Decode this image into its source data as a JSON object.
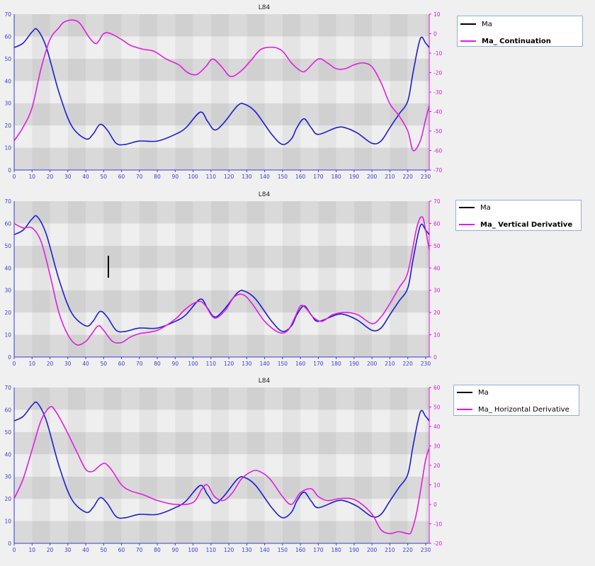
{
  "colors": {
    "series1": "#1c1cd4",
    "series2": "#e01ee0",
    "axis_left": "#3a3ad8",
    "axis_right": "#d818d8",
    "band_dark": "#d9d9d9",
    "band_light": "#efefef",
    "band_dark_shade": "#d0d0d0",
    "band_light_shade": "#e4e4e4"
  },
  "chart_data": [
    {
      "type": "line",
      "title": "L84",
      "xlim": [
        0,
        232
      ],
      "xticks": [
        0,
        10,
        20,
        30,
        40,
        50,
        60,
        70,
        80,
        90,
        100,
        110,
        120,
        130,
        140,
        150,
        160,
        170,
        180,
        190,
        200,
        210,
        220,
        230
      ],
      "ylim_left": [
        0,
        70
      ],
      "yticks_left": [
        0,
        10,
        20,
        30,
        40,
        50,
        60,
        70
      ],
      "ylim_right": [
        -70,
        10
      ],
      "yticks_right": [
        -70,
        -60,
        -50,
        -40,
        -30,
        -20,
        -10,
        0,
        10
      ],
      "legend": {
        "position": "right"
      },
      "series": [
        {
          "name": "Ma",
          "axis": "left",
          "x": [
            0,
            5,
            10,
            13,
            18,
            25,
            32,
            40,
            44,
            48,
            52,
            57,
            62,
            70,
            80,
            90,
            96,
            104,
            108,
            112,
            117,
            125,
            129,
            135,
            144,
            150,
            155,
            158,
            162,
            166,
            170,
            180,
            185,
            192,
            200,
            205,
            210,
            215,
            220,
            223,
            227,
            230,
            232
          ],
          "y": [
            55,
            57,
            62,
            63,
            55,
            35,
            20,
            14,
            16,
            20.5,
            18,
            12,
            11.5,
            13,
            13,
            16,
            19,
            26,
            22,
            18,
            21,
            29,
            29.5,
            26,
            16,
            11.5,
            14,
            19,
            23,
            19,
            16,
            19,
            19,
            16.5,
            12,
            13,
            19,
            25,
            31,
            44,
            59,
            57,
            55
          ]
        },
        {
          "name": "Ma_ Continuation",
          "axis": "right",
          "x": [
            0,
            5,
            10,
            15,
            20,
            25,
            28,
            33,
            37,
            42,
            46,
            50,
            54,
            60,
            65,
            72,
            78,
            85,
            92,
            97,
            102,
            107,
            111,
            116,
            121,
            127,
            133,
            138,
            145,
            150,
            155,
            160,
            163,
            170,
            175,
            180,
            185,
            190,
            195,
            200,
            205,
            210,
            215,
            220,
            223,
            227,
            230,
            232
          ],
          "y": [
            -55,
            -48,
            -38,
            -18,
            -3,
            3,
            6,
            7,
            5,
            -2,
            -5,
            0,
            0,
            -3,
            -6,
            -8,
            -9,
            -13,
            -16,
            -20,
            -21,
            -17,
            -13,
            -17,
            -22,
            -19,
            -13,
            -8,
            -7,
            -9,
            -15,
            -19,
            -19,
            -13,
            -15,
            -18,
            -18,
            -16,
            -15,
            -17,
            -25,
            -36,
            -42,
            -50,
            -60,
            -55,
            -44,
            -37
          ]
        }
      ]
    },
    {
      "type": "line",
      "title": "L84",
      "xlim": [
        0,
        232
      ],
      "xticks": [
        0,
        10,
        20,
        30,
        40,
        50,
        60,
        70,
        80,
        90,
        100,
        110,
        120,
        130,
        140,
        150,
        160,
        170,
        180,
        190,
        200,
        210,
        220,
        230
      ],
      "ylim_left": [
        0,
        70
      ],
      "yticks_left": [
        0,
        10,
        20,
        30,
        40,
        50,
        60,
        70
      ],
      "ylim_right": [
        0,
        70
      ],
      "yticks_right": [
        0,
        10,
        20,
        30,
        40,
        50,
        60,
        70
      ],
      "legend": {
        "position": "right"
      },
      "series": [
        {
          "name": "Ma",
          "axis": "left",
          "x": [
            0,
            5,
            10,
            13,
            18,
            25,
            32,
            40,
            44,
            48,
            52,
            57,
            62,
            70,
            80,
            90,
            96,
            104,
            108,
            112,
            117,
            125,
            129,
            135,
            144,
            150,
            155,
            158,
            162,
            166,
            170,
            180,
            185,
            192,
            200,
            205,
            210,
            215,
            220,
            223,
            227,
            230,
            232
          ],
          "y": [
            55,
            57,
            62,
            63,
            55,
            35,
            20,
            14,
            16,
            20.5,
            18,
            12,
            11.5,
            13,
            13,
            16,
            19,
            26,
            22,
            18,
            21,
            29,
            29.5,
            26,
            16,
            11.5,
            14,
            19,
            23,
            19,
            16,
            19,
            19,
            16.5,
            12,
            13,
            19,
            25,
            31,
            44,
            59,
            57,
            55
          ]
        },
        {
          "name": "Ma_ Vertical Derivative",
          "axis": "right",
          "x": [
            0,
            5,
            10,
            15,
            20,
            25,
            30,
            35,
            40,
            43,
            47,
            50,
            55,
            60,
            65,
            70,
            80,
            90,
            95,
            100,
            104,
            107,
            112,
            118,
            123,
            128,
            133,
            140,
            148,
            153,
            157,
            160,
            163,
            167,
            172,
            178,
            185,
            192,
            200,
            205,
            210,
            215,
            220,
            225,
            228,
            230,
            232
          ],
          "y": [
            60,
            58,
            58,
            52,
            37,
            20,
            10,
            5.5,
            7,
            10,
            14,
            12,
            7,
            6.5,
            9,
            10.5,
            12,
            17,
            21,
            24,
            25,
            23,
            17.5,
            21,
            27,
            28,
            24,
            16,
            11,
            12,
            18,
            23,
            22,
            18,
            16,
            19,
            20,
            19,
            15,
            18,
            24,
            31,
            38,
            58,
            63,
            57,
            48
          ]
        }
      ]
    },
    {
      "type": "line",
      "title": "L84",
      "xlim": [
        0,
        232
      ],
      "xticks": [
        0,
        10,
        20,
        30,
        40,
        50,
        60,
        70,
        80,
        90,
        100,
        110,
        120,
        130,
        140,
        150,
        160,
        170,
        180,
        190,
        200,
        210,
        220,
        230
      ],
      "ylim_left": [
        0,
        70
      ],
      "yticks_left": [
        0,
        10,
        20,
        30,
        40,
        50,
        60,
        70
      ],
      "ylim_right": [
        -20,
        60
      ],
      "yticks_right": [
        -20,
        -10,
        0,
        10,
        20,
        30,
        40,
        50,
        60
      ],
      "legend": {
        "position": "right"
      },
      "series": [
        {
          "name": "Ma",
          "axis": "left",
          "x": [
            0,
            5,
            10,
            13,
            18,
            25,
            32,
            40,
            44,
            48,
            52,
            57,
            62,
            70,
            80,
            90,
            96,
            104,
            108,
            112,
            117,
            125,
            129,
            135,
            144,
            150,
            155,
            158,
            162,
            166,
            170,
            180,
            185,
            192,
            200,
            205,
            210,
            215,
            220,
            223,
            227,
            230,
            232
          ],
          "y": [
            55,
            57,
            62,
            63,
            55,
            35,
            20,
            14,
            16,
            20.5,
            18,
            12,
            11.5,
            13,
            13,
            16,
            19,
            26,
            22,
            18,
            21,
            29,
            29.5,
            26,
            16,
            11.5,
            14,
            19,
            23,
            19,
            16,
            19,
            19,
            16.5,
            12,
            13,
            19,
            25,
            31,
            44,
            59,
            57,
            55
          ]
        },
        {
          "name": "Ma_ Horizontal Derivative",
          "axis": "right",
          "x": [
            0,
            5,
            10,
            15,
            20,
            23,
            28,
            35,
            40,
            44,
            48,
            51,
            55,
            60,
            65,
            72,
            80,
            90,
            100,
            105,
            108,
            112,
            117,
            122,
            127,
            133,
            137,
            143,
            150,
            155,
            160,
            166,
            170,
            175,
            182,
            188,
            193,
            200,
            205,
            210,
            215,
            220,
            222,
            225,
            228,
            230,
            232
          ],
          "y": [
            3,
            13,
            28,
            43,
            50,
            48,
            40,
            27,
            18,
            17,
            20,
            21,
            17,
            10,
            7,
            5,
            2,
            0,
            1,
            8,
            10,
            4,
            2,
            6,
            13,
            17,
            17,
            13,
            4,
            0,
            6,
            8,
            4,
            2,
            3,
            3,
            1,
            -5,
            -13,
            -15,
            -14,
            -15,
            -14,
            -4,
            12,
            23,
            29
          ]
        }
      ]
    }
  ]
}
